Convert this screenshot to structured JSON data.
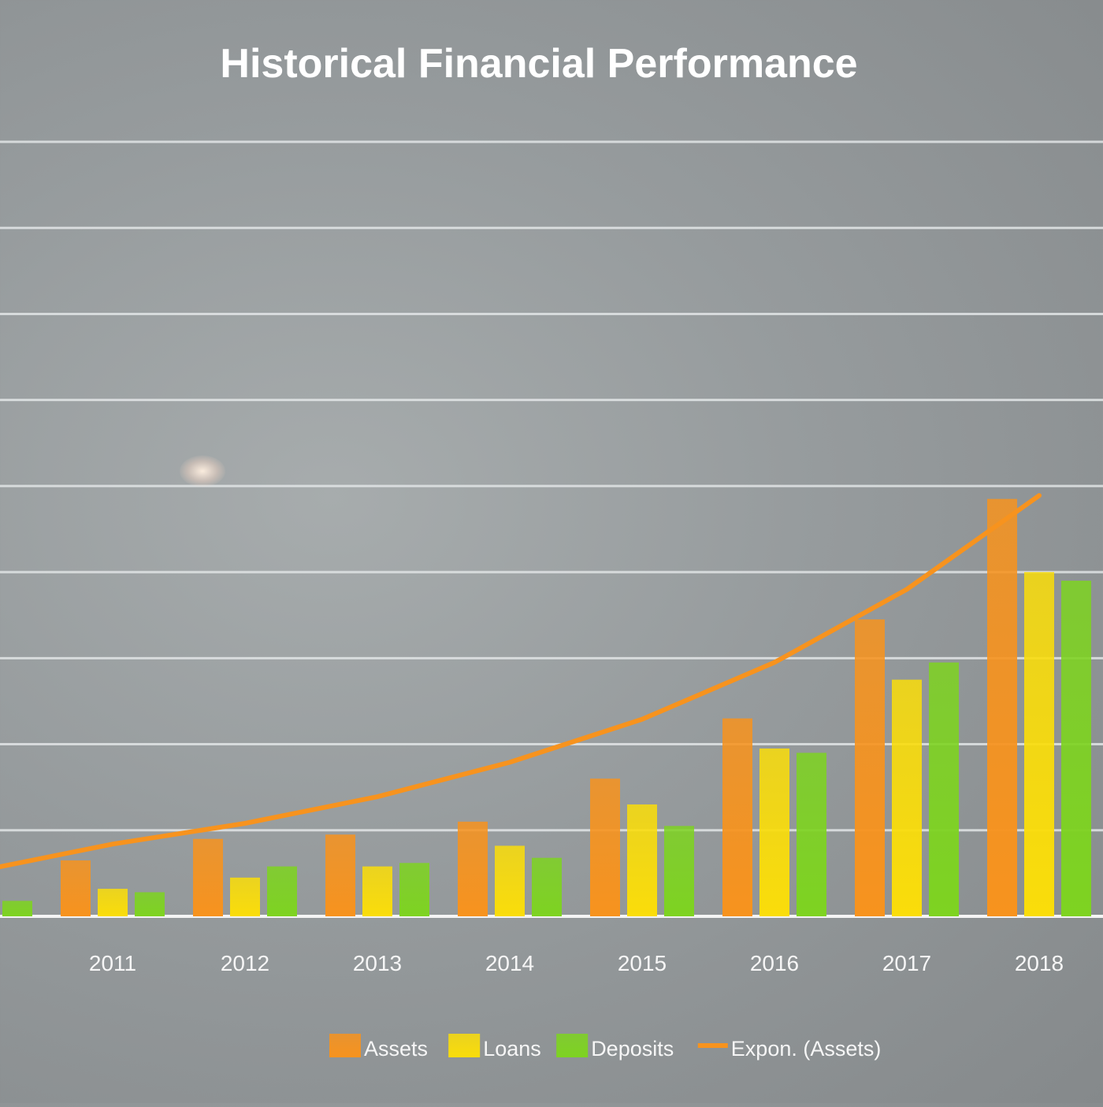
{
  "chart_data": {
    "type": "bar",
    "title": "Historical Financial Performance",
    "categories": [
      "2011",
      "2012",
      "2013",
      "2014",
      "2015",
      "2016",
      "2017",
      "2018"
    ],
    "series": [
      {
        "name": "Assets",
        "color": "#f7931e",
        "values": [
          0.65,
          0.9,
          0.95,
          1.1,
          1.6,
          2.3,
          3.45,
          4.85
        ]
      },
      {
        "name": "Loans",
        "color": "#fadd0a",
        "values": [
          0.32,
          0.45,
          0.58,
          0.82,
          1.3,
          1.95,
          2.75,
          4.0
        ]
      },
      {
        "name": "Deposits",
        "color": "#7ed321",
        "values": [
          0.28,
          0.58,
          0.62,
          0.68,
          1.05,
          1.9,
          2.95,
          3.9
        ]
      }
    ],
    "trendline": {
      "name": "Expon. (Assets)",
      "color": "#f7931e",
      "values": [
        0.53,
        0.84,
        1.08,
        1.39,
        1.79,
        2.29,
        2.95,
        3.8,
        4.89
      ]
    },
    "leading_partial": {
      "series": "Deposits",
      "value": 0.18
    },
    "xlabel": "",
    "ylabel": "",
    "ylim": [
      0,
      9
    ],
    "grid": true,
    "legend_position": "bottom"
  }
}
